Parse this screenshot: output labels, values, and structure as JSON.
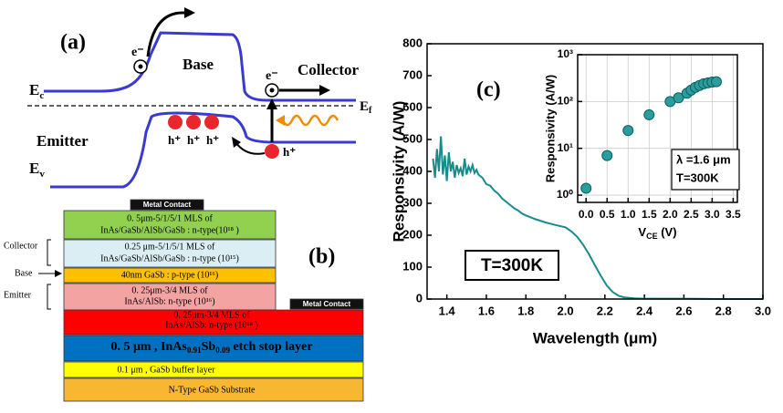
{
  "band_diagram": {
    "label": "(a)",
    "base": "Base",
    "collector": "Collector",
    "emitter": "Emitter",
    "ec": {
      "main": "E",
      "sub": "c"
    },
    "ev": {
      "main": "E",
      "sub": "v"
    },
    "ef": {
      "main": "E",
      "sub": "f"
    },
    "electron_labels": [
      "e⁻",
      "e⁻"
    ],
    "hole_labels": [
      "h⁺",
      "h⁺",
      "h⁺",
      "h⁺"
    ]
  },
  "layer_stack": {
    "label": "(b)",
    "contacts": [
      "Metal Contact",
      "Metal Contact"
    ],
    "side_labels": [
      "Collector",
      "Base",
      "Emitter"
    ],
    "layers": [
      {
        "lines": [
          "0. 5μm-5/1/5/1 MLS of",
          "InAs/GaSb/AlSb/GaSb : n-type(10¹⁸ )"
        ]
      },
      {
        "lines": [
          "0.25 μm-5/1/5/1 MLS of",
          "InAs/GaSb/AlSb/GaSb : n-type (10¹⁵)"
        ]
      },
      {
        "lines": [
          "40nm GaSb : p-type (10¹⁶)"
        ]
      },
      {
        "lines": [
          "0. 25μm-3/4 MLS of",
          "InAs/AlSb: n-type (10¹⁶)"
        ]
      },
      {
        "lines": [
          "0. 25μm-3/4 MLS of",
          "InAs/AlSb: n-type (10¹⁸ )"
        ]
      },
      {
        "parts": [
          "0. 5 μm , InAs",
          "0.91",
          "Sb",
          "0.09",
          " etch stop layer"
        ]
      },
      {
        "lines": [
          "0.1 μm , GaSb buffer layer"
        ]
      },
      {
        "lines": [
          "N-Type GaSb Substrate"
        ]
      }
    ]
  },
  "chart_data": [
    {
      "type": "line",
      "label": "(c)",
      "xlabel": "Wavelength (μm)",
      "ylabel": "Responsivity (A/W)",
      "annotation": "T=300K",
      "xlim": [
        1.3,
        3.0
      ],
      "ylim": [
        0,
        800
      ],
      "xticks": [
        1.4,
        1.6,
        1.8,
        {
          "value": 2,
          "label": "2.0"
        },
        2.2,
        2.4,
        2.6,
        2.8,
        {
          "value": 3,
          "label": "3.0"
        }
      ],
      "yticks": [
        0,
        100,
        200,
        300,
        400,
        500,
        600,
        700,
        800
      ],
      "grid": false,
      "x": [
        1.33,
        1.34,
        1.35,
        1.36,
        1.37,
        1.38,
        1.39,
        1.4,
        1.41,
        1.42,
        1.43,
        1.44,
        1.45,
        1.46,
        1.47,
        1.48,
        1.49,
        1.5,
        1.51,
        1.52,
        1.53,
        1.54,
        1.55,
        1.56,
        1.58,
        1.6,
        1.62,
        1.64,
        1.66,
        1.68,
        1.7,
        1.72,
        1.74,
        1.76,
        1.78,
        1.8,
        1.85,
        1.9,
        1.95,
        2.0,
        2.03,
        2.06,
        2.09,
        2.12,
        2.15,
        2.18,
        2.21,
        2.24,
        2.27,
        2.3,
        2.35,
        2.4,
        2.6,
        2.8,
        3.0
      ],
      "series": [
        {
          "color": "#1a8a8a",
          "values": [
            440,
            380,
            470,
            400,
            510,
            390,
            450,
            370,
            460,
            400,
            430,
            380,
            420,
            395,
            410,
            385,
            440,
            390,
            415,
            400,
            420,
            395,
            405,
            390,
            380,
            360,
            355,
            340,
            330,
            315,
            305,
            295,
            285,
            278,
            268,
            262,
            250,
            240,
            232,
            225,
            212,
            195,
            170,
            140,
            105,
            72,
            42,
            22,
            10,
            5,
            2,
            1,
            1,
            0,
            0
          ]
        }
      ]
    },
    {
      "type": "scatter",
      "xlabel": {
        "main": "V",
        "sub": "CE",
        "rest": " (V)"
      },
      "ylabel": "Responsivity (A/W)",
      "annotations": [
        "λ =1.6 μm",
        "T=300K"
      ],
      "xlim": [
        -0.2,
        3.6
      ],
      "ylim": [
        0.7,
        1000
      ],
      "log_y": true,
      "grid": true,
      "color": "#2a9d9d",
      "xticks": [
        {
          "value": 0,
          "label": "0.0"
        },
        0.5,
        {
          "value": 1,
          "label": "1.0"
        },
        1.5,
        {
          "value": 2,
          "label": "2.0"
        },
        2.5,
        {
          "value": 3,
          "label": "3.0"
        },
        3.5
      ],
      "yticks": [
        {
          "value": 1,
          "label": "10⁰"
        },
        {
          "value": 10,
          "label": "10¹"
        },
        {
          "value": 100,
          "label": "10²"
        },
        {
          "value": 1000,
          "label": "10³"
        }
      ],
      "x": [
        0,
        0.5,
        1,
        1.5,
        2,
        2.2,
        2.4,
        2.5,
        2.6,
        2.7,
        2.8,
        2.9,
        3.0,
        3.1
      ],
      "values": [
        1.4,
        7,
        24,
        52,
        100,
        120,
        150,
        175,
        200,
        220,
        240,
        250,
        260,
        265
      ]
    }
  ]
}
